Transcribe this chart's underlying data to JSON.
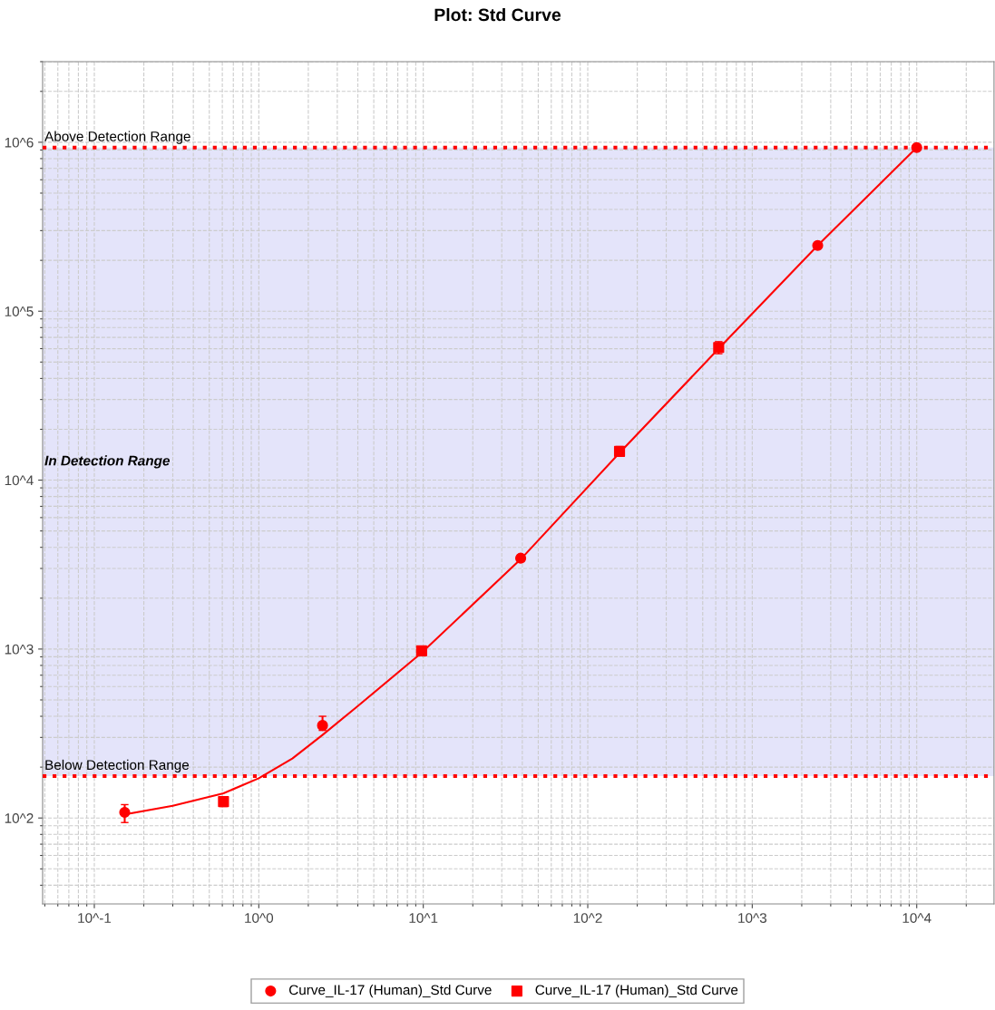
{
  "chart_data": {
    "type": "scatter",
    "title": "Plot: Std Curve",
    "log": "xy",
    "grid": true,
    "legend": "bottom",
    "xlim": [
      0.0485,
      29500
    ],
    "ylim": [
      31,
      3000000
    ],
    "xticks": [
      {
        "value": 0.1,
        "label": "10^-1"
      },
      {
        "value": 1,
        "label": "10^0"
      },
      {
        "value": 10,
        "label": "10^1"
      },
      {
        "value": 100,
        "label": "10^2"
      },
      {
        "value": 1000,
        "label": "10^3"
      },
      {
        "value": 10000,
        "label": "10^4"
      }
    ],
    "yticks": [
      {
        "value": 100,
        "label": "10^2"
      },
      {
        "value": 1000,
        "label": "10^3"
      },
      {
        "value": 10000,
        "label": "10^4"
      },
      {
        "value": 100000,
        "label": "10^5"
      },
      {
        "value": 1000000,
        "label": "10^6"
      }
    ],
    "series": [
      {
        "name": "Curve_IL-17 (Human)_Std Curve",
        "marker": "circle",
        "color": "#ff0000",
        "x": [
          0.153,
          2.44,
          39.1,
          2500,
          10000
        ],
        "values": [
          108,
          353,
          3450,
          245000,
          930000
        ],
        "errors": [
          [
            94,
            120
          ],
          [
            330,
            400
          ],
          [
            3300,
            3600
          ],
          null,
          null
        ]
      },
      {
        "name": "Curve_IL-17 (Human)_Std Curve",
        "marker": "square",
        "color": "#ff0000",
        "x": [
          0.61,
          9.77,
          156,
          625
        ],
        "values": [
          125,
          975,
          14800,
          61000
        ],
        "errors": [
          [
            117,
            130
          ],
          [
            920,
            1040
          ],
          [
            13900,
            15800
          ],
          [
            56000,
            66000
          ]
        ]
      },
      {
        "type": "line",
        "color": "#ff0000",
        "marker": "none",
        "x": [
          0.153,
          0.3,
          0.61,
          1,
          1.6,
          2.44,
          4,
          9.77,
          39.1,
          156,
          625,
          2500,
          10000
        ],
        "values": [
          105,
          118,
          140,
          172,
          225,
          310,
          460,
          950,
          3400,
          14500,
          60000,
          245000,
          930000
        ]
      }
    ],
    "ref_lines": [
      {
        "axis": "y",
        "value": 930000,
        "label": "Above Detection Range",
        "color": "#ff0000",
        "line_style": "dotted"
      },
      {
        "axis": "y",
        "value": 177,
        "label": "Below Detection Range",
        "color": "#ff0000",
        "line_style": "dotted"
      }
    ],
    "bands": [
      {
        "axis": "y",
        "from": 177,
        "to": 930000,
        "label": "In Detection Range",
        "color": "#e4e4fa"
      }
    ]
  }
}
